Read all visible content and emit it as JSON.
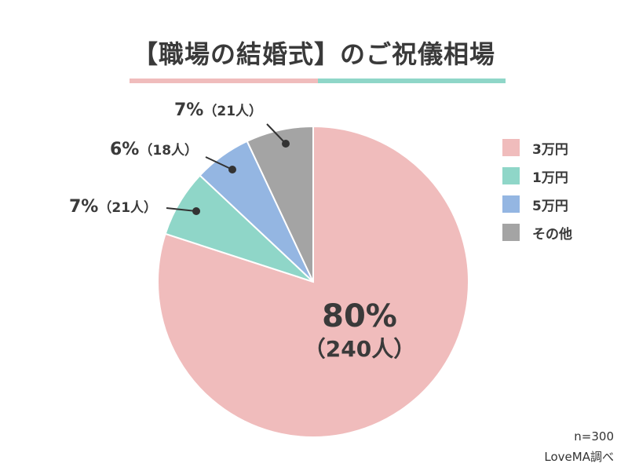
{
  "title": "【職場の結婚式】のご祝儀相場",
  "colors": {
    "bar_left": "#f0bcbc",
    "bar_right": "#8fd6c8",
    "text": "#3a3a3a"
  },
  "chart_data": {
    "type": "pie",
    "slices": [
      {
        "name": "3万円",
        "percent": 80,
        "count": 240,
        "percent_label": "80%",
        "count_label": "（240人）",
        "color": "#f0bcbc"
      },
      {
        "name": "1万円",
        "percent": 7,
        "count": 21,
        "percent_label": "7%",
        "count_label": "（21人）",
        "color": "#8fd6c8"
      },
      {
        "name": "5万円",
        "percent": 6,
        "count": 18,
        "percent_label": "6%",
        "count_label": "（18人）",
        "color": "#94b6e2"
      },
      {
        "name": "その他",
        "percent": 7,
        "count": 21,
        "percent_label": "7%",
        "count_label": "（21人）",
        "color": "#a4a4a4"
      }
    ],
    "legend_placement": "right"
  },
  "footer": {
    "sample_size": "n=300",
    "source": "LoveMA調べ"
  }
}
